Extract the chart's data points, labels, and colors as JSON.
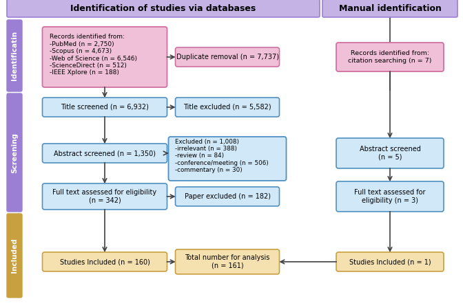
{
  "title_left": "Identification of studies via databases",
  "title_right": "Manual identification",
  "left_label_identification": "Identificatin",
  "left_label_screening": "Screening",
  "left_label_included": "Included",
  "box_pink_records": "Records identified from:\n-PubMed (n = 2,750)\n-Scopus (n = 4,673)\n-Web of Science (n = 6,546)\n-ScienceDirect (n = 512)\n-IEEE Xplore (n = 188)",
  "box_pink_duplicate": "Duplicate removal (n = 7,737)",
  "box_pink_citation": "Records identified from:\ncitation searching (n = 7)",
  "box_blue_title_screened": "Title screened (n = 6,932)",
  "box_blue_title_excluded": "Title excluded (n = 5,582)",
  "box_blue_abstract_screened": "Abstract screened (n = 1,350)",
  "box_blue_excluded_detail": "Excluded (n = 1,008)\n-irrelevant (n = 388)\n-review (n = 84)\n-conference/meeting (n = 506)\n-commentary (n = 30)",
  "box_blue_abstract_screened_right": "Abstract screened\n(n = 5)",
  "box_blue_fulltext_left": "Full text assessed for eligibility\n(n = 342)",
  "box_blue_paper_excluded": "Paper excluded (n = 182)",
  "box_blue_fulltext_right": "Full text assessed for\neligibility (n = 3)",
  "box_gold_studies_left": "Studies Included (n = 160)",
  "box_gold_total": "Total number for analysis\n(n = 161)",
  "box_gold_studies_right": "Studies Included (n = 1)",
  "color_purple_header": "#c5b3e6",
  "color_purple_border": "#9b7fd4",
  "color_pink_box": "#f0c0d8",
  "color_pink_border": "#d070a0",
  "color_blue_box": "#d0e8f8",
  "color_blue_border": "#5090c0",
  "color_gold_box": "#f5e0b0",
  "color_gold_border": "#c8a040",
  "color_side_label_bg": "#9b7fd4",
  "color_side_label_text": "white",
  "bg_color": "white"
}
